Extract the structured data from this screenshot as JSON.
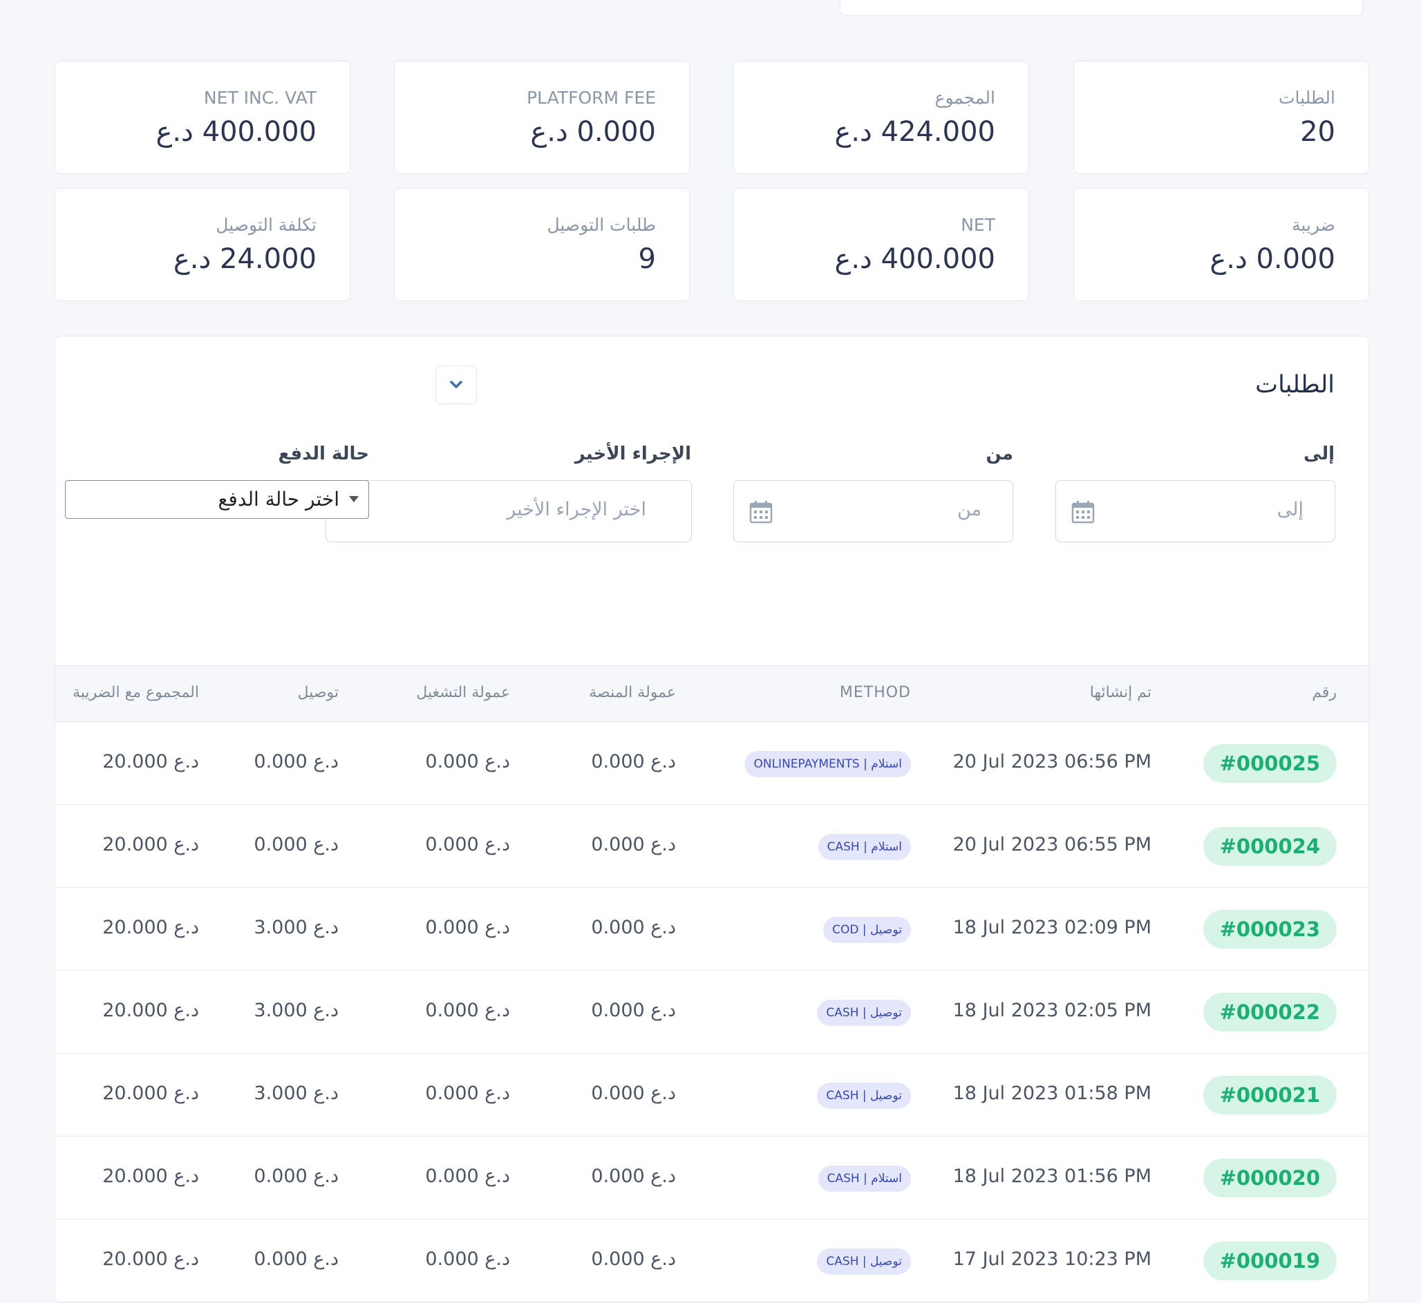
{
  "stats": [
    {
      "label": "الطلبات",
      "value": "20"
    },
    {
      "label": "المجموع",
      "value": "424.000 د.ع"
    },
    {
      "label": "PLATFORM FEE",
      "value": "0.000 د.ع"
    },
    {
      "label": "NET INC. VAT",
      "value": "400.000 د.ع"
    },
    {
      "label": "ضريبة",
      "value": "0.000 د.ع"
    },
    {
      "label": "NET",
      "value": "400.000 د.ع"
    },
    {
      "label": "طلبات التوصيل",
      "value": "9"
    },
    {
      "label": "تكلفة التوصيل",
      "value": "24.000 د.ع"
    }
  ],
  "panel": {
    "title": "الطلبات",
    "filters": {
      "to_label": "إلى",
      "to_placeholder": "إلى",
      "from_label": "من",
      "from_placeholder": "من",
      "last_action_label": "الإجراء الأخير",
      "last_action_placeholder": "اختر الإجراء الأخير",
      "payment_status_label": "حالة الدفع",
      "payment_status_value": "اختر حالة الدفع"
    }
  },
  "table": {
    "headers": {
      "number": "رقم",
      "created": "تم إنشائها",
      "method": "METHOD",
      "platform_commission": "عمولة المنصة",
      "operation_commission": "عمولة التشغيل",
      "delivery": "توصيل",
      "total_with_tax": "المجموع مع الضريبة"
    },
    "rows": [
      {
        "number": "#000025",
        "created": "20 Jul 2023 06:56 PM",
        "method": "استلام | ONLINEPAYMENTS",
        "platform": "0.000 د.ع",
        "operation": "0.000 د.ع",
        "delivery": "0.000 د.ع",
        "total": "20.000 د.ع"
      },
      {
        "number": "#000024",
        "created": "20 Jul 2023 06:55 PM",
        "method": "استلام | CASH",
        "platform": "0.000 د.ع",
        "operation": "0.000 د.ع",
        "delivery": "0.000 د.ع",
        "total": "20.000 د.ع"
      },
      {
        "number": "#000023",
        "created": "18 Jul 2023 02:09 PM",
        "method": "توصيل | COD",
        "platform": "0.000 د.ع",
        "operation": "0.000 د.ع",
        "delivery": "3.000 د.ع",
        "total": "20.000 د.ع"
      },
      {
        "number": "#000022",
        "created": "18 Jul 2023 02:05 PM",
        "method": "توصيل | CASH",
        "platform": "0.000 د.ع",
        "operation": "0.000 د.ع",
        "delivery": "3.000 د.ع",
        "total": "20.000 د.ع"
      },
      {
        "number": "#000021",
        "created": "18 Jul 2023 01:58 PM",
        "method": "توصيل | CASH",
        "platform": "0.000 د.ع",
        "operation": "0.000 د.ع",
        "delivery": "3.000 د.ع",
        "total": "20.000 د.ع"
      },
      {
        "number": "#000020",
        "created": "18 Jul 2023 01:56 PM",
        "method": "استلام | CASH",
        "platform": "0.000 د.ع",
        "operation": "0.000 د.ع",
        "delivery": "0.000 د.ع",
        "total": "20.000 د.ع"
      },
      {
        "number": "#000019",
        "created": "17 Jul 2023 10:23 PM",
        "method": "توصيل | CASH",
        "platform": "0.000 د.ع",
        "operation": "0.000 د.ع",
        "delivery": "0.000 د.ع",
        "total": "20.000 د.ع"
      }
    ]
  }
}
